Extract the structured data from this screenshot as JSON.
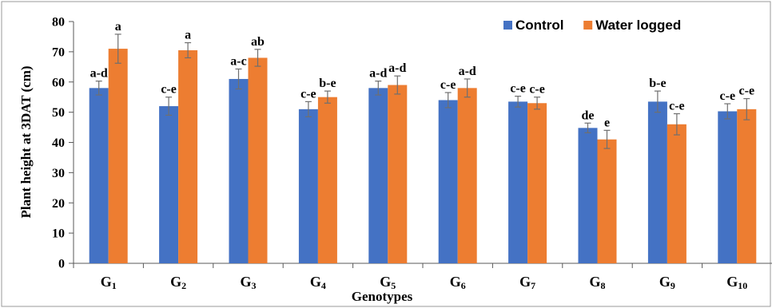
{
  "chart_data": {
    "type": "bar",
    "ylabel": "Plant height at 3DAT (cm)",
    "xlabel": "Genotypes",
    "ylim": [
      0,
      80
    ],
    "yticks": [
      0,
      10,
      20,
      30,
      40,
      50,
      60,
      70,
      80
    ],
    "categories": [
      {
        "base": "G",
        "sub": "1"
      },
      {
        "base": "G",
        "sub": "2"
      },
      {
        "base": "G",
        "sub": "3"
      },
      {
        "base": "G",
        "sub": "4"
      },
      {
        "base": "G",
        "sub": "5"
      },
      {
        "base": "G",
        "sub": "6"
      },
      {
        "base": "G",
        "sub": "7"
      },
      {
        "base": "G",
        "sub": "8"
      },
      {
        "base": "G",
        "sub": "9"
      },
      {
        "base": "G",
        "sub": "10"
      }
    ],
    "legend_position": "top-right",
    "grid": false,
    "series": [
      {
        "name": "Control",
        "color": "#4472C4",
        "values": [
          58.0,
          52.0,
          61.0,
          51.0,
          58.0,
          54.0,
          53.5,
          44.8,
          53.5,
          50.3
        ],
        "errors": [
          2.3,
          3.0,
          3.3,
          2.5,
          2.3,
          2.5,
          1.8,
          1.6,
          3.5,
          2.5
        ],
        "labels": [
          "a-d",
          "c-e",
          "a-c",
          "c-e",
          "a-d",
          "c-e",
          "c-e",
          "de",
          "b-e",
          "c-e"
        ]
      },
      {
        "name": "Water logged",
        "color": "#ED7D31",
        "values": [
          71.0,
          70.5,
          68.0,
          55.0,
          59.0,
          58.0,
          53.0,
          41.0,
          46.0,
          51.0
        ],
        "errors": [
          4.8,
          2.5,
          2.8,
          2.0,
          3.0,
          3.0,
          2.0,
          3.0,
          3.5,
          3.5
        ],
        "labels": [
          "a",
          "a",
          "ab",
          "b-e",
          "a-d",
          "a-d",
          "c-e",
          "e",
          "c-e",
          "c-e"
        ]
      }
    ]
  }
}
